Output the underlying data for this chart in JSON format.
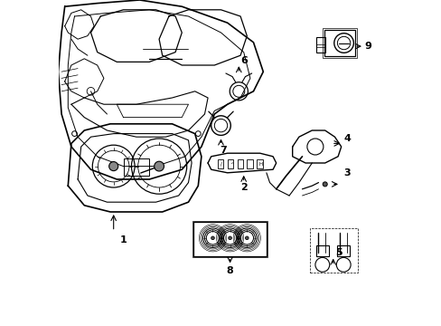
{
  "title": "",
  "bg_color": "#ffffff",
  "line_color": "#000000",
  "line_width": 0.8,
  "fig_width": 4.89,
  "fig_height": 3.6,
  "dpi": 100
}
